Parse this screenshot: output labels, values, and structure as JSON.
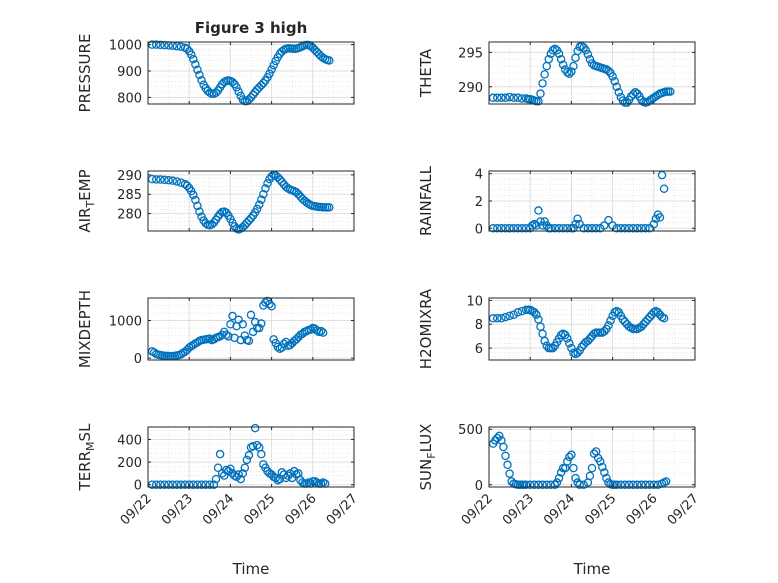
{
  "figure_title": "Figure 3 high",
  "marker_color": "#0072bd",
  "chart_data": [
    {
      "type": "scatter",
      "ylabel": "PRESSURE",
      "title": "Figure 3 high",
      "xlabel": "",
      "grid": true,
      "xticks": [
        "09/22",
        "09/23",
        "09/24",
        "09/25",
        "09/26",
        "09/27"
      ],
      "xlim": [
        0,
        5
      ],
      "ylim": [
        775,
        1010
      ],
      "yticks": [
        800,
        900,
        1000
      ],
      "x": [
        0.1,
        0.2,
        0.3,
        0.4,
        0.5,
        0.6,
        0.7,
        0.8,
        0.9,
        0.95,
        1.0,
        1.05,
        1.1,
        1.15,
        1.2,
        1.25,
        1.3,
        1.35,
        1.4,
        1.45,
        1.5,
        1.55,
        1.6,
        1.65,
        1.7,
        1.75,
        1.8,
        1.85,
        1.9,
        1.95,
        2.0,
        2.05,
        2.1,
        2.15,
        2.2,
        2.25,
        2.3,
        2.35,
        2.4,
        2.45,
        2.5,
        2.55,
        2.6,
        2.65,
        2.7,
        2.75,
        2.8,
        2.85,
        2.9,
        2.95,
        3.0,
        3.05,
        3.1,
        3.15,
        3.2,
        3.25,
        3.3,
        3.35,
        3.4,
        3.45,
        3.5,
        3.55,
        3.6,
        3.65,
        3.7,
        3.75,
        3.8,
        3.85,
        3.9,
        3.95,
        4.0,
        4.05,
        4.1,
        4.15,
        4.2,
        4.25,
        4.3,
        4.35,
        4.4
      ],
      "y": [
        1000,
        1000,
        999,
        998,
        997,
        996,
        994,
        992,
        988,
        984,
        975,
        962,
        945,
        925,
        905,
        885,
        865,
        848,
        835,
        825,
        818,
        814,
        814,
        818,
        826,
        838,
        850,
        858,
        862,
        864,
        862,
        858,
        850,
        838,
        822,
        806,
        792,
        786,
        786,
        792,
        800,
        810,
        820,
        830,
        838,
        846,
        854,
        864,
        876,
        890,
        906,
        922,
        938,
        952,
        965,
        974,
        980,
        984,
        986,
        986,
        985,
        984,
        985,
        987,
        990,
        994,
        997,
        999,
        998,
        994,
        988,
        980,
        972,
        964,
        956,
        950,
        945,
        942,
        940
      ]
    },
    {
      "type": "scatter",
      "ylabel": "THETA",
      "xlabel": "",
      "grid": true,
      "xticks": [
        "09/22",
        "09/23",
        "09/24",
        "09/25",
        "09/26",
        "09/27"
      ],
      "xlim": [
        0,
        5
      ],
      "ylim": [
        287.5,
        296.5
      ],
      "yticks": [
        290,
        295
      ],
      "x": [
        0.1,
        0.2,
        0.3,
        0.4,
        0.5,
        0.6,
        0.7,
        0.8,
        0.9,
        0.95,
        1.0,
        1.05,
        1.1,
        1.15,
        1.2,
        1.25,
        1.3,
        1.35,
        1.4,
        1.45,
        1.5,
        1.55,
        1.6,
        1.65,
        1.7,
        1.75,
        1.8,
        1.85,
        1.9,
        1.95,
        2.0,
        2.05,
        2.1,
        2.15,
        2.2,
        2.25,
        2.3,
        2.35,
        2.4,
        2.45,
        2.5,
        2.55,
        2.6,
        2.65,
        2.7,
        2.75,
        2.8,
        2.85,
        2.9,
        2.95,
        3.0,
        3.05,
        3.1,
        3.15,
        3.2,
        3.25,
        3.3,
        3.35,
        3.4,
        3.45,
        3.5,
        3.55,
        3.6,
        3.65,
        3.7,
        3.75,
        3.8,
        3.85,
        3.9,
        3.95,
        4.0,
        4.05,
        4.1,
        4.15,
        4.2,
        4.25,
        4.3,
        4.35,
        4.4
      ],
      "y": [
        288.4,
        288.4,
        288.4,
        288.4,
        288.5,
        288.4,
        288.4,
        288.3,
        288.3,
        288.2,
        288.2,
        288.1,
        288.0,
        287.9,
        287.9,
        289.0,
        290.5,
        291.8,
        293.0,
        294.0,
        294.8,
        295.3,
        295.5,
        295.3,
        294.8,
        294.0,
        293.2,
        292.5,
        292.1,
        291.9,
        292.2,
        293.0,
        294.2,
        295.2,
        295.8,
        295.9,
        295.7,
        295.3,
        294.7,
        294.0,
        293.4,
        293.1,
        293.0,
        292.9,
        292.8,
        292.7,
        292.6,
        292.5,
        292.3,
        292.0,
        291.5,
        290.8,
        290.0,
        289.2,
        288.5,
        288.0,
        287.7,
        287.7,
        288.1,
        288.6,
        288.9,
        289.2,
        289.0,
        288.6,
        288.1,
        287.8,
        287.7,
        287.8,
        288.0,
        288.2,
        288.4,
        288.6,
        288.8,
        289.0,
        289.1,
        289.2,
        289.3,
        289.3,
        289.3
      ]
    },
    {
      "type": "scatter",
      "ylabel": "AIR_TEMP",
      "xlabel": "",
      "grid": true,
      "xticks": [
        "09/22",
        "09/23",
        "09/24",
        "09/25",
        "09/26",
        "09/27"
      ],
      "xlim": [
        0,
        5
      ],
      "ylim": [
        275.5,
        291
      ],
      "yticks": [
        280,
        285,
        290
      ],
      "x": [
        0.1,
        0.2,
        0.3,
        0.4,
        0.5,
        0.6,
        0.7,
        0.8,
        0.9,
        0.95,
        1.0,
        1.05,
        1.1,
        1.15,
        1.2,
        1.25,
        1.3,
        1.35,
        1.4,
        1.45,
        1.5,
        1.55,
        1.6,
        1.65,
        1.7,
        1.75,
        1.8,
        1.85,
        1.9,
        1.95,
        2.0,
        2.05,
        2.1,
        2.15,
        2.2,
        2.25,
        2.3,
        2.35,
        2.4,
        2.45,
        2.5,
        2.55,
        2.6,
        2.65,
        2.7,
        2.75,
        2.8,
        2.85,
        2.9,
        2.95,
        3.0,
        3.05,
        3.1,
        3.15,
        3.2,
        3.25,
        3.3,
        3.35,
        3.4,
        3.45,
        3.5,
        3.55,
        3.6,
        3.65,
        3.7,
        3.75,
        3.8,
        3.85,
        3.9,
        3.95,
        4.0,
        4.05,
        4.1,
        4.15,
        4.2,
        4.25,
        4.3,
        4.35,
        4.4
      ],
      "y": [
        288.9,
        288.8,
        288.8,
        288.7,
        288.6,
        288.5,
        288.3,
        288.0,
        287.6,
        287.2,
        286.6,
        285.8,
        284.8,
        283.5,
        282.0,
        280.5,
        279.2,
        278.2,
        277.5,
        277.1,
        277.0,
        277.2,
        277.7,
        278.4,
        279.2,
        279.9,
        280.4,
        280.5,
        280.2,
        279.5,
        278.6,
        277.6,
        276.7,
        276.1,
        275.9,
        276.1,
        276.5,
        277.0,
        277.6,
        278.2,
        278.8,
        279.5,
        280.3,
        281.2,
        282.3,
        283.6,
        285.0,
        286.5,
        287.8,
        288.9,
        289.6,
        290.0,
        289.8,
        289.4,
        288.8,
        288.2,
        287.5,
        286.9,
        286.5,
        286.2,
        286.0,
        285.8,
        285.5,
        285.0,
        284.4,
        283.8,
        283.3,
        282.9,
        282.5,
        282.2,
        282.0,
        281.9,
        281.8,
        281.7,
        281.7,
        281.6,
        281.6,
        281.6,
        281.6
      ]
    },
    {
      "type": "scatter",
      "ylabel": "RAINFALL",
      "xlabel": "",
      "grid": true,
      "xticks": [
        "09/22",
        "09/23",
        "09/24",
        "09/25",
        "09/26",
        "09/27"
      ],
      "xlim": [
        0,
        5
      ],
      "ylim": [
        -0.2,
        4.2
      ],
      "yticks": [
        0,
        2,
        4
      ],
      "x": [
        0.1,
        0.2,
        0.3,
        0.4,
        0.5,
        0.6,
        0.7,
        0.8,
        0.9,
        1.0,
        1.05,
        1.1,
        1.15,
        1.2,
        1.25,
        1.3,
        1.35,
        1.4,
        1.45,
        1.5,
        1.6,
        1.7,
        1.8,
        1.9,
        2.0,
        2.05,
        2.1,
        2.15,
        2.2,
        2.3,
        2.4,
        2.5,
        2.6,
        2.7,
        2.8,
        2.9,
        3.0,
        3.1,
        3.2,
        3.3,
        3.4,
        3.5,
        3.6,
        3.7,
        3.8,
        3.9,
        4.0,
        4.05,
        4.1,
        4.15,
        4.2,
        4.25
      ],
      "y": [
        0,
        0,
        0,
        0,
        0,
        0,
        0,
        0,
        0,
        0,
        0.2,
        0.3,
        0.2,
        1.3,
        0.5,
        0.2,
        0.5,
        0.2,
        0,
        0,
        0,
        0,
        0,
        0,
        0,
        0,
        0.3,
        0.7,
        0.3,
        0,
        0,
        0,
        0,
        0,
        0.2,
        0.6,
        0.2,
        0,
        0,
        0,
        0,
        0,
        0,
        0,
        0,
        0,
        0.3,
        0.7,
        1.0,
        0.8,
        3.9,
        2.9
      ]
    },
    {
      "type": "scatter",
      "ylabel": "MIXDEPTH",
      "xlabel": "",
      "grid": true,
      "xticks": [
        "09/22",
        "09/23",
        "09/24",
        "09/25",
        "09/26",
        "09/27"
      ],
      "xlim": [
        0,
        5
      ],
      "ylim": [
        -50,
        1600
      ],
      "yticks": [
        0,
        1000
      ],
      "x": [
        0.1,
        0.15,
        0.2,
        0.25,
        0.3,
        0.35,
        0.4,
        0.45,
        0.5,
        0.55,
        0.6,
        0.65,
        0.7,
        0.75,
        0.8,
        0.85,
        0.9,
        0.95,
        1.0,
        1.05,
        1.1,
        1.15,
        1.2,
        1.25,
        1.3,
        1.35,
        1.4,
        1.45,
        1.5,
        1.55,
        1.6,
        1.65,
        1.7,
        1.75,
        1.8,
        1.85,
        1.9,
        1.95,
        2.0,
        2.05,
        2.1,
        2.15,
        2.2,
        2.25,
        2.3,
        2.35,
        2.4,
        2.45,
        2.5,
        2.55,
        2.6,
        2.65,
        2.7,
        2.75,
        2.8,
        2.85,
        2.9,
        2.95,
        3.0,
        3.05,
        3.1,
        3.15,
        3.2,
        3.25,
        3.3,
        3.35,
        3.4,
        3.45,
        3.5,
        3.55,
        3.6,
        3.65,
        3.7,
        3.75,
        3.8,
        3.85,
        3.9,
        3.95,
        4.0,
        4.05,
        4.1,
        4.15,
        4.2,
        4.25
      ],
      "y": [
        180,
        150,
        110,
        90,
        80,
        70,
        60,
        60,
        55,
        50,
        55,
        60,
        70,
        80,
        100,
        140,
        170,
        220,
        280,
        320,
        350,
        390,
        420,
        460,
        480,
        490,
        500,
        510,
        520,
        480,
        500,
        540,
        560,
        580,
        620,
        700,
        620,
        580,
        900,
        1120,
        540,
        850,
        1020,
        480,
        900,
        600,
        480,
        460,
        1150,
        700,
        960,
        800,
        800,
        920,
        1400,
        1480,
        1520,
        1440,
        1380,
        500,
        400,
        300,
        250,
        280,
        380,
        430,
        330,
        350,
        400,
        460,
        500,
        560,
        620,
        650,
        700,
        720,
        750,
        760,
        800,
        780,
        740,
        700,
        720,
        680
      ]
    },
    {
      "type": "scatter",
      "ylabel": "H2OMIXRA",
      "xlabel": "",
      "grid": true,
      "xticks": [
        "09/22",
        "09/23",
        "09/24",
        "09/25",
        "09/26",
        "09/27"
      ],
      "xlim": [
        0,
        5
      ],
      "ylim": [
        5,
        10.2
      ],
      "yticks": [
        6,
        8,
        10
      ],
      "x": [
        0.1,
        0.2,
        0.3,
        0.4,
        0.5,
        0.6,
        0.7,
        0.8,
        0.9,
        0.95,
        1.0,
        1.05,
        1.1,
        1.15,
        1.2,
        1.25,
        1.3,
        1.35,
        1.4,
        1.45,
        1.5,
        1.55,
        1.6,
        1.65,
        1.7,
        1.75,
        1.8,
        1.85,
        1.9,
        1.95,
        2.0,
        2.05,
        2.1,
        2.15,
        2.2,
        2.25,
        2.3,
        2.35,
        2.4,
        2.45,
        2.5,
        2.55,
        2.6,
        2.65,
        2.7,
        2.75,
        2.8,
        2.85,
        2.9,
        2.95,
        3.0,
        3.05,
        3.1,
        3.15,
        3.2,
        3.25,
        3.3,
        3.35,
        3.4,
        3.45,
        3.5,
        3.55,
        3.6,
        3.65,
        3.7,
        3.75,
        3.8,
        3.85,
        3.9,
        3.95,
        4.0,
        4.05,
        4.1,
        4.15,
        4.2,
        4.25
      ],
      "y": [
        8.5,
        8.5,
        8.5,
        8.6,
        8.7,
        8.8,
        9.0,
        9.1,
        9.2,
        9.2,
        9.2,
        9.1,
        9.0,
        8.8,
        8.4,
        7.8,
        7.2,
        6.6,
        6.2,
        6.0,
        6.0,
        6.0,
        6.2,
        6.5,
        6.8,
        7.1,
        7.2,
        7.1,
        6.8,
        6.4,
        6.0,
        5.6,
        5.5,
        5.6,
        5.8,
        6.1,
        6.3,
        6.5,
        6.6,
        6.8,
        7.0,
        7.2,
        7.3,
        7.3,
        7.3,
        7.3,
        7.4,
        7.6,
        7.9,
        8.3,
        8.7,
        9.0,
        9.1,
        9.0,
        8.7,
        8.4,
        8.2,
        8.0,
        7.8,
        7.7,
        7.6,
        7.6,
        7.6,
        7.7,
        7.8,
        8.0,
        8.2,
        8.4,
        8.6,
        8.8,
        9.0,
        9.1,
        9.0,
        8.8,
        8.6,
        8.5
      ]
    },
    {
      "type": "scatter",
      "ylabel": "TERR_MSL",
      "xlabel": "Time",
      "grid": true,
      "xticks": [
        "09/22",
        "09/23",
        "09/24",
        "09/25",
        "09/26",
        "09/27"
      ],
      "xlim": [
        0,
        5
      ],
      "ylim": [
        -20,
        510
      ],
      "yticks": [
        0,
        200,
        400
      ],
      "x": [
        0.1,
        0.2,
        0.3,
        0.4,
        0.5,
        0.6,
        0.7,
        0.8,
        0.9,
        1.0,
        1.1,
        1.2,
        1.3,
        1.4,
        1.5,
        1.6,
        1.65,
        1.7,
        1.75,
        1.8,
        1.85,
        1.9,
        1.95,
        2.0,
        2.05,
        2.1,
        2.15,
        2.2,
        2.25,
        2.3,
        2.35,
        2.4,
        2.45,
        2.5,
        2.55,
        2.6,
        2.65,
        2.7,
        2.75,
        2.8,
        2.85,
        2.9,
        2.95,
        3.0,
        3.05,
        3.1,
        3.15,
        3.2,
        3.25,
        3.3,
        3.35,
        3.4,
        3.45,
        3.5,
        3.55,
        3.6,
        3.65,
        3.7,
        3.75,
        3.8,
        3.85,
        3.9,
        3.95,
        4.0,
        4.05,
        4.1,
        4.15,
        4.2,
        4.25,
        4.3
      ],
      "y": [
        0,
        0,
        0,
        0,
        0,
        0,
        0,
        0,
        0,
        0,
        0,
        0,
        0,
        0,
        0,
        0,
        50,
        150,
        270,
        100,
        80,
        130,
        120,
        140,
        100,
        80,
        70,
        90,
        50,
        100,
        150,
        220,
        260,
        330,
        340,
        500,
        350,
        330,
        270,
        180,
        150,
        120,
        100,
        90,
        70,
        60,
        40,
        50,
        110,
        90,
        60,
        80,
        100,
        60,
        120,
        90,
        100,
        40,
        20,
        10,
        10,
        20,
        10,
        30,
        30,
        20,
        10,
        10,
        20,
        10
      ]
    },
    {
      "type": "scatter",
      "ylabel": "SUN_FLUX",
      "xlabel": "Time",
      "grid": true,
      "xticks": [
        "09/22",
        "09/23",
        "09/24",
        "09/25",
        "09/26",
        "09/27"
      ],
      "xlim": [
        0,
        5
      ],
      "ylim": [
        -20,
        520
      ],
      "yticks": [
        0,
        500
      ],
      "x": [
        0.1,
        0.15,
        0.2,
        0.25,
        0.3,
        0.35,
        0.4,
        0.45,
        0.5,
        0.55,
        0.6,
        0.65,
        0.7,
        0.75,
        0.8,
        0.85,
        0.9,
        1.0,
        1.1,
        1.2,
        1.3,
        1.4,
        1.5,
        1.6,
        1.65,
        1.7,
        1.75,
        1.8,
        1.85,
        1.9,
        1.95,
        2.0,
        2.05,
        2.1,
        2.15,
        2.2,
        2.3,
        2.4,
        2.45,
        2.5,
        2.55,
        2.6,
        2.65,
        2.7,
        2.75,
        2.8,
        2.85,
        2.9,
        2.95,
        3.0,
        3.05,
        3.1,
        3.2,
        3.3,
        3.4,
        3.5,
        3.6,
        3.7,
        3.8,
        3.9,
        4.0,
        4.1,
        4.2,
        4.25,
        4.3
      ],
      "y": [
        370,
        400,
        420,
        440,
        400,
        340,
        260,
        180,
        100,
        30,
        10,
        5,
        0,
        0,
        0,
        0,
        0,
        0,
        0,
        0,
        0,
        0,
        0,
        0,
        20,
        60,
        110,
        150,
        150,
        210,
        250,
        270,
        150,
        60,
        20,
        0,
        0,
        20,
        80,
        150,
        280,
        300,
        240,
        210,
        160,
        110,
        60,
        20,
        5,
        0,
        0,
        0,
        0,
        0,
        0,
        0,
        0,
        0,
        0,
        0,
        0,
        0,
        10,
        20,
        30
      ]
    }
  ]
}
